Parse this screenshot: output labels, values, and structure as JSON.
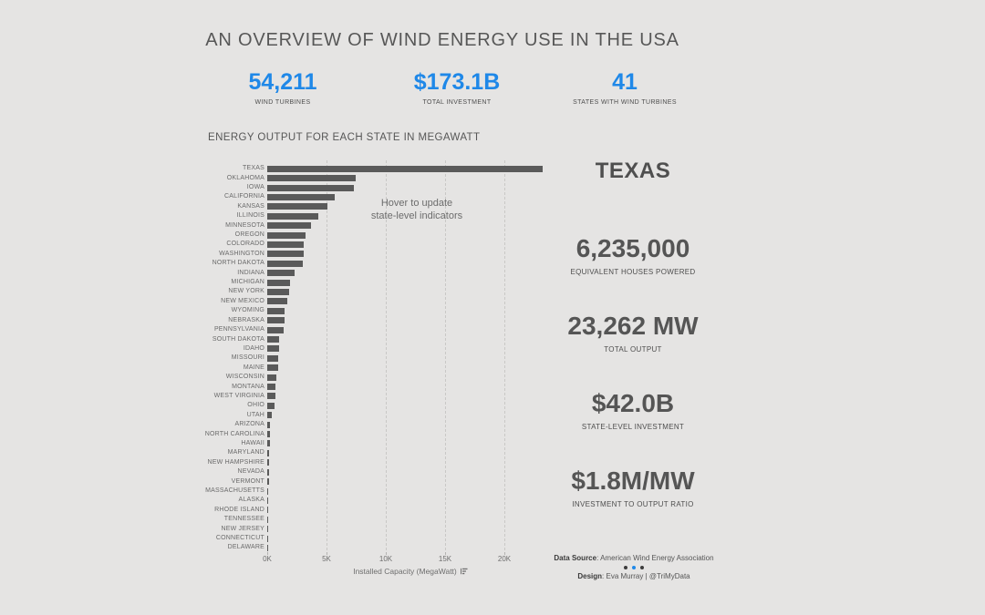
{
  "title": "AN OVERVIEW OF WIND ENERGY USE IN THE USA",
  "colors": {
    "background": "#e5e4e3",
    "accent_blue": "#1f88e8",
    "bar_gray": "#5a5a5a",
    "text_dark": "#555555"
  },
  "kpis": [
    {
      "value": "54,211",
      "label": "WIND TURBINES"
    },
    {
      "value": "$173.1B",
      "label": "TOTAL INVESTMENT"
    },
    {
      "value": "41",
      "label": "STATES WITH WIND TURBINES"
    }
  ],
  "chart": {
    "header": "ENERGY OUTPUT FOR EACH STATE IN MEGAWATT",
    "annotation_line1": "Hover to update",
    "annotation_line2": "state-level indicators",
    "x_axis_title": "Installed Capacity (MegaWatt)"
  },
  "chart_data": {
    "type": "bar",
    "orientation": "horizontal",
    "title": "ENERGY OUTPUT FOR EACH STATE IN MEGAWATT",
    "xlabel": "Installed Capacity (MegaWatt)",
    "xlim": [
      0,
      24400
    ],
    "x_tick_values": [
      0,
      5000,
      10000,
      15000,
      20000
    ],
    "x_tick_labels": [
      "0K",
      "5K",
      "10K",
      "15K",
      "20K"
    ],
    "grid": "vertical-dashed",
    "categories": [
      "TEXAS",
      "OKLAHOMA",
      "IOWA",
      "CALIFORNIA",
      "KANSAS",
      "ILLINOIS",
      "MINNESOTA",
      "OREGON",
      "COLORADO",
      "WASHINGTON",
      "NORTH DAKOTA",
      "INDIANA",
      "MICHIGAN",
      "NEW YORK",
      "NEW MEXICO",
      "WYOMING",
      "NEBRASKA",
      "PENNSYLVANIA",
      "SOUTH DAKOTA",
      "IDAHO",
      "MISSOURI",
      "MAINE",
      "WISCONSIN",
      "MONTANA",
      "WEST VIRGINIA",
      "OHIO",
      "UTAH",
      "ARIZONA",
      "NORTH CAROLINA",
      "HAWAII",
      "MARYLAND",
      "NEW HAMPSHIRE",
      "NEVADA",
      "VERMONT",
      "MASSACHUSETTS",
      "ALASKA",
      "RHODE ISLAND",
      "TENNESSEE",
      "NEW JERSEY",
      "CONNECTICUT",
      "DELAWARE"
    ],
    "values": [
      23262,
      7495,
      7312,
      5686,
      5110,
      4332,
      3699,
      3213,
      3106,
      3075,
      2996,
      2317,
      1905,
      1829,
      1682,
      1489,
      1445,
      1369,
      977,
      973,
      959,
      923,
      746,
      695,
      686,
      617,
      391,
      268,
      208,
      206,
      191,
      185,
      152,
      149,
      113,
      62,
      54,
      29,
      9,
      5,
      2
    ]
  },
  "state_panel": {
    "name": "TEXAS",
    "indicators": [
      {
        "value": "6,235,000",
        "label": "EQUIVALENT HOUSES POWERED"
      },
      {
        "value": "23,262 MW",
        "label": "TOTAL OUTPUT"
      },
      {
        "value": "$42.0B",
        "label": "STATE-LEVEL INVESTMENT"
      },
      {
        "value": "$1.8M/MW",
        "label": "INVESTMENT TO OUTPUT RATIO"
      }
    ]
  },
  "footer": {
    "source_label": "Data Source",
    "source_rest": ": American Wind Energy Association",
    "design_label": "Design",
    "design_rest": ": Eva Murray | @TriMyData"
  }
}
